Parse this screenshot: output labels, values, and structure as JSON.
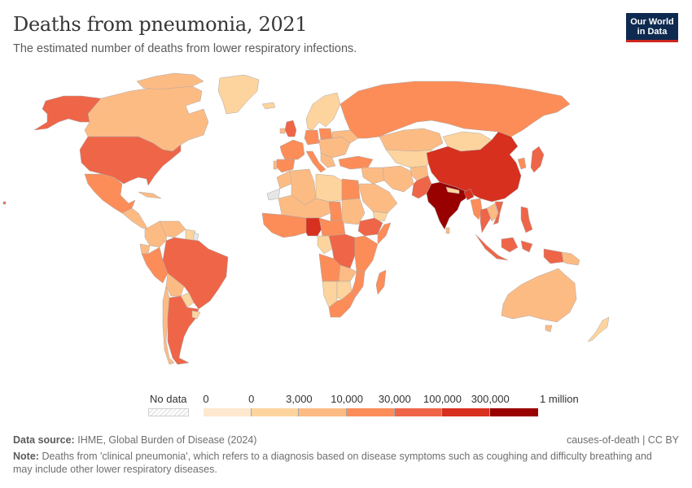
{
  "header": {
    "title": "Deaths from pneumonia, 2021",
    "subtitle": "The estimated number of deaths from lower respiratory infections.",
    "logo_line1": "Our World",
    "logo_line2": "in Data"
  },
  "legend": {
    "no_data_label": "No data",
    "ticks": [
      "0",
      "0",
      "3,000",
      "10,000",
      "30,000",
      "100,000",
      "300,000",
      "1 million"
    ],
    "colors": [
      "#fee8cf",
      "#fdd49e",
      "#fdbb84",
      "#fc8d59",
      "#ef6548",
      "#d7301f",
      "#990000"
    ],
    "no_data_color": "#e6e6e6"
  },
  "footer": {
    "source_label": "Data source:",
    "source_text": "IHME, Global Burden of Disease (2024)",
    "license": "causes-of-death | CC BY",
    "note_label": "Note:",
    "note_text": "Deaths from 'clinical pneumonia', which refers to a diagnosis based on disease symptoms such as coughing and difficulty breathing and may include other lower respiratory diseases."
  },
  "chart_data": {
    "type": "choropleth-map",
    "title": "Deaths from pneumonia, 2021",
    "subtitle": "The estimated number of deaths from lower respiratory infections.",
    "year": 2021,
    "legend_bins": [
      "0",
      "0–3,000",
      "3,000–10,000",
      "10,000–30,000",
      "30,000–100,000",
      "100,000–300,000",
      "300,000–1 million"
    ],
    "bin_colors": [
      "#fee8cf",
      "#fdd49e",
      "#fdbb84",
      "#fc8d59",
      "#ef6548",
      "#d7301f",
      "#990000"
    ],
    "countries": [
      {
        "name": "India",
        "bin": "300,000–1 million"
      },
      {
        "name": "China",
        "bin": "100,000–300,000"
      },
      {
        "name": "Nigeria",
        "bin": "100,000–300,000"
      },
      {
        "name": "Bangladesh",
        "bin": "100,000–300,000"
      },
      {
        "name": "United States",
        "bin": "30,000–100,000"
      },
      {
        "name": "Brazil",
        "bin": "30,000–100,000"
      },
      {
        "name": "Argentina",
        "bin": "30,000–100,000"
      },
      {
        "name": "Pakistan",
        "bin": "30,000–100,000"
      },
      {
        "name": "Japan",
        "bin": "30,000–100,000"
      },
      {
        "name": "Indonesia",
        "bin": "30,000–100,000"
      },
      {
        "name": "Philippines",
        "bin": "30,000–100,000"
      },
      {
        "name": "United Kingdom",
        "bin": "30,000–100,000"
      },
      {
        "name": "Ethiopia",
        "bin": "30,000–100,000"
      },
      {
        "name": "DR Congo",
        "bin": "30,000–100,000"
      },
      {
        "name": "Vietnam",
        "bin": "30,000–100,000"
      },
      {
        "name": "Myanmar",
        "bin": "30,000–100,000"
      },
      {
        "name": "Thailand",
        "bin": "30,000–100,000"
      },
      {
        "name": "Russia",
        "bin": "10,000–30,000"
      },
      {
        "name": "Mexico",
        "bin": "10,000–30,000"
      },
      {
        "name": "France",
        "bin": "10,000–30,000"
      },
      {
        "name": "Germany",
        "bin": "10,000–30,000"
      },
      {
        "name": "Spain",
        "bin": "10,000–30,000"
      },
      {
        "name": "Italy",
        "bin": "10,000–30,000"
      },
      {
        "name": "Poland",
        "bin": "10,000–30,000"
      },
      {
        "name": "Turkey",
        "bin": "10,000–30,000"
      },
      {
        "name": "Egypt",
        "bin": "10,000–30,000"
      },
      {
        "name": "South Africa",
        "bin": "10,000–30,000"
      },
      {
        "name": "Peru",
        "bin": "10,000–30,000"
      },
      {
        "name": "Angola",
        "bin": "10,000–30,000"
      },
      {
        "name": "Tanzania",
        "bin": "10,000–30,000"
      },
      {
        "name": "Kenya",
        "bin": "10,000–30,000"
      },
      {
        "name": "Madagascar",
        "bin": "10,000–30,000"
      },
      {
        "name": "South Korea",
        "bin": "10,000–30,000"
      },
      {
        "name": "Canada",
        "bin": "3,000–10,000"
      },
      {
        "name": "Australia",
        "bin": "3,000–10,000"
      },
      {
        "name": "Colombia",
        "bin": "3,000–10,000"
      },
      {
        "name": "Bolivia",
        "bin": "3,000–10,000"
      },
      {
        "name": "Chile",
        "bin": "3,000–10,000"
      },
      {
        "name": "Algeria",
        "bin": "3,000–10,000"
      },
      {
        "name": "Iran",
        "bin": "3,000–10,000"
      },
      {
        "name": "Saudi Arabia",
        "bin": "3,000–10,000"
      },
      {
        "name": "Kazakhstan",
        "bin": "3,000–10,000"
      },
      {
        "name": "Sudan",
        "bin": "3,000–10,000"
      },
      {
        "name": "Papua New Guinea",
        "bin": "3,000–10,000"
      },
      {
        "name": "Greenland",
        "bin": "0–3,000"
      },
      {
        "name": "Mongolia",
        "bin": "0–3,000"
      },
      {
        "name": "Namibia",
        "bin": "0–3,000"
      },
      {
        "name": "Botswana",
        "bin": "0–3,000"
      },
      {
        "name": "Libya",
        "bin": "0–3,000"
      },
      {
        "name": "Norway",
        "bin": "0–3,000"
      },
      {
        "name": "New Zealand",
        "bin": "0–3,000"
      },
      {
        "name": "Uruguay",
        "bin": "0–3,000"
      },
      {
        "name": "Nepal",
        "bin": "0–3,000"
      },
      {
        "name": "Western Sahara",
        "bin": "No data"
      },
      {
        "name": "French Guiana",
        "bin": "No data"
      }
    ]
  }
}
